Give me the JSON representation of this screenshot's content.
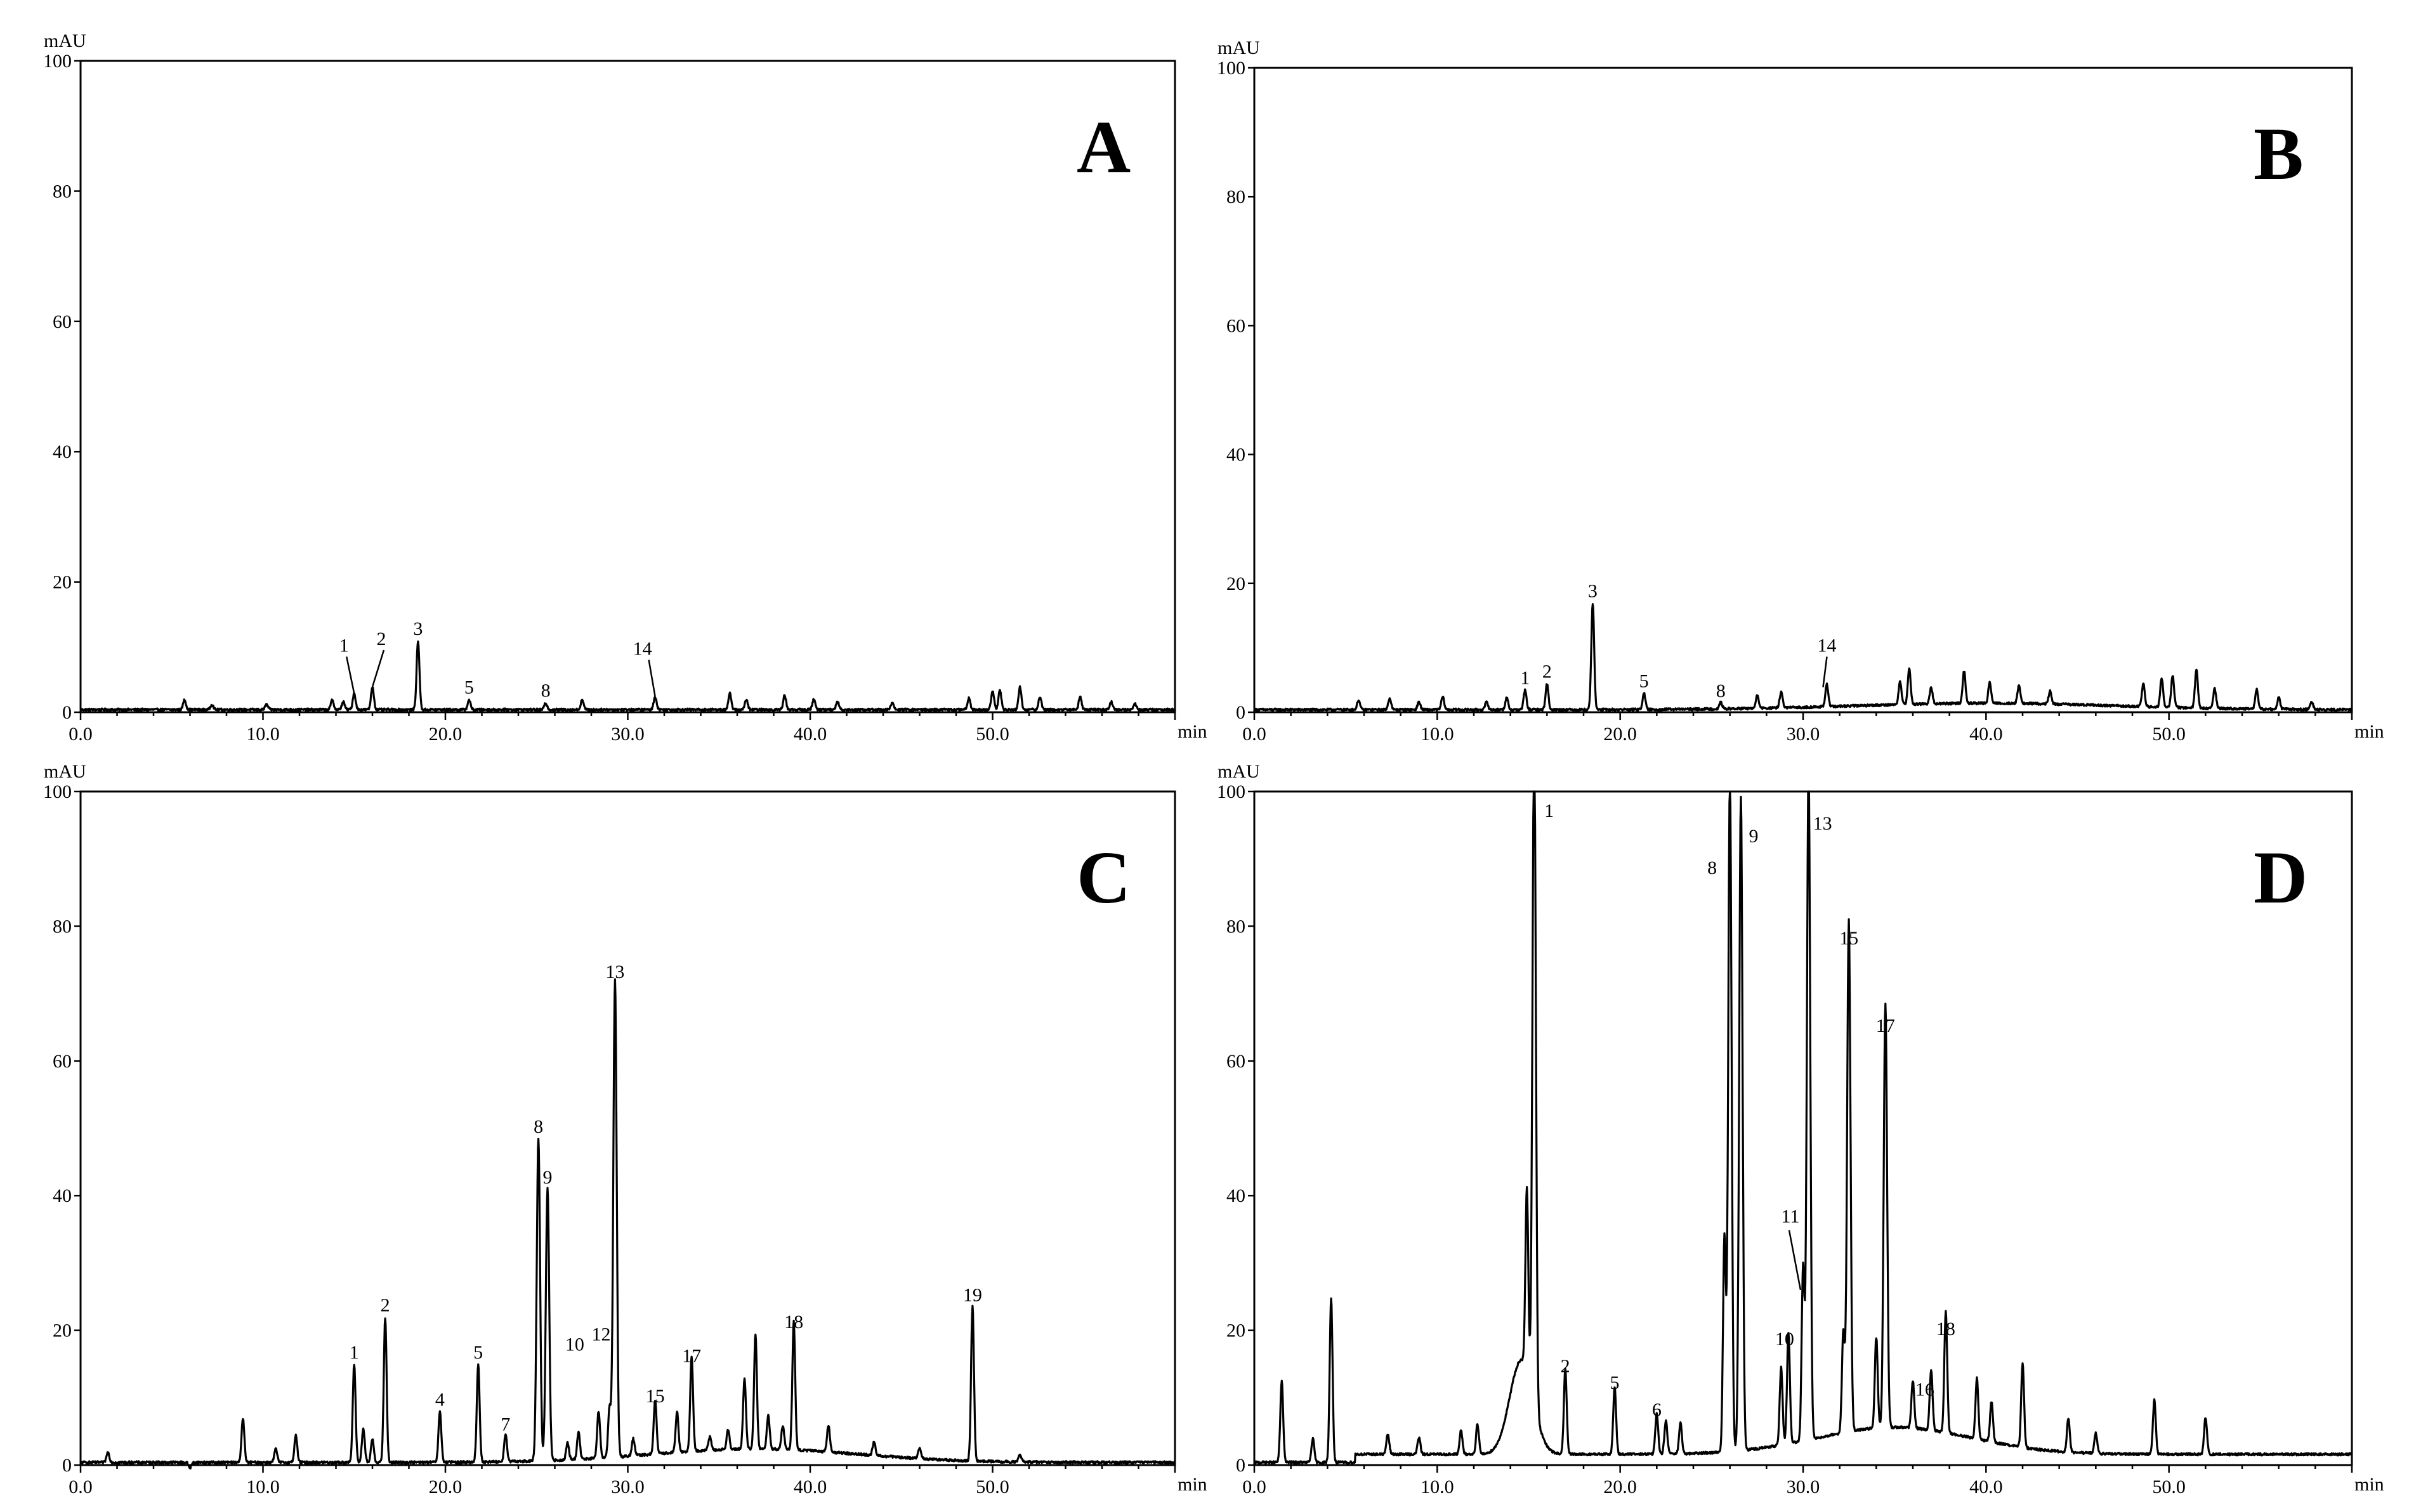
{
  "chart_data": [
    {
      "type": "line",
      "panel": "A",
      "ylabel": "mAU",
      "xlabel": "min",
      "xlim": [
        0,
        60
      ],
      "ylim": [
        0,
        100
      ],
      "x_ticks": [
        "0.0",
        "10.0",
        "20.0",
        "30.0",
        "40.0",
        "50.0"
      ],
      "y_ticks": [
        "0",
        "20",
        "40",
        "60",
        "80",
        "100"
      ],
      "peaks": [
        {
          "label": "1",
          "x": 15.0,
          "y": 2.5
        },
        {
          "label": "2",
          "x": 16.0,
          "y": 3.5
        },
        {
          "label": "3",
          "x": 18.5,
          "y": 10.5
        },
        {
          "label": "5",
          "x": 21.3,
          "y": 1.5
        },
        {
          "label": "8",
          "x": 25.5,
          "y": 1.0
        },
        {
          "label": "14",
          "x": 31.5,
          "y": 2.0
        }
      ],
      "other_peaks": [
        [
          5.7,
          1.5
        ],
        [
          7.2,
          0.8
        ],
        [
          10.2,
          0.8
        ],
        [
          13.8,
          1.5
        ],
        [
          14.4,
          1.2
        ],
        [
          27.5,
          1.5
        ],
        [
          35.6,
          2.5
        ],
        [
          36.5,
          1.5
        ],
        [
          38.6,
          2.2
        ],
        [
          40.2,
          1.6
        ],
        [
          41.5,
          1.2
        ],
        [
          44.5,
          1.0
        ],
        [
          48.7,
          1.8
        ],
        [
          50.0,
          2.8
        ],
        [
          50.4,
          3.0
        ],
        [
          51.5,
          3.5
        ],
        [
          52.6,
          2.0
        ],
        [
          54.8,
          2.0
        ],
        [
          56.5,
          1.2
        ],
        [
          57.8,
          1.0
        ]
      ]
    },
    {
      "type": "line",
      "panel": "B",
      "ylabel": "mAU",
      "xlabel": "min",
      "xlim": [
        0,
        60
      ],
      "ylim": [
        0,
        100
      ],
      "x_ticks": [
        "0.0",
        "10.0",
        "20.0",
        "30.0",
        "40.0",
        "50.0"
      ],
      "y_ticks": [
        "0",
        "20",
        "40",
        "60",
        "80",
        "100"
      ],
      "peaks": [
        {
          "label": "1",
          "x": 14.8,
          "y": 3.0
        },
        {
          "label": "2",
          "x": 16.0,
          "y": 4.0
        },
        {
          "label": "3",
          "x": 18.5,
          "y": 16.5
        },
        {
          "label": "5",
          "x": 21.3,
          "y": 2.5
        },
        {
          "label": "8",
          "x": 25.5,
          "y": 1.0
        },
        {
          "label": "14",
          "x": 31.3,
          "y": 3.5
        }
      ],
      "other_peaks": [
        [
          5.7,
          1.5
        ],
        [
          7.4,
          1.8
        ],
        [
          9.0,
          1.2
        ],
        [
          10.3,
          2.0
        ],
        [
          12.7,
          1.2
        ],
        [
          13.8,
          1.8
        ],
        [
          27.5,
          2.0
        ],
        [
          28.8,
          2.5
        ],
        [
          35.3,
          3.5
        ],
        [
          35.8,
          5.5
        ],
        [
          37.0,
          2.5
        ],
        [
          38.8,
          5.0
        ],
        [
          40.2,
          3.2
        ],
        [
          41.8,
          2.8
        ],
        [
          43.5,
          2.0
        ],
        [
          48.6,
          3.5
        ],
        [
          49.6,
          4.5
        ],
        [
          50.2,
          5.0
        ],
        [
          51.5,
          6.0
        ],
        [
          52.5,
          3.0
        ],
        [
          54.8,
          3.0
        ],
        [
          56.0,
          1.8
        ],
        [
          57.8,
          1.2
        ]
      ]
    },
    {
      "type": "line",
      "panel": "C",
      "ylabel": "mAU",
      "xlabel": "min",
      "xlim": [
        0,
        60
      ],
      "ylim": [
        0,
        100
      ],
      "x_ticks": [
        "0.0",
        "10.0",
        "20.0",
        "30.0",
        "40.0",
        "50.0"
      ],
      "y_ticks": [
        "0",
        "20",
        "40",
        "60",
        "80",
        "100"
      ],
      "peaks": [
        {
          "label": "1",
          "x": 15.0,
          "y": 14.5
        },
        {
          "label": "2",
          "x": 16.7,
          "y": 21.5
        },
        {
          "label": "4",
          "x": 19.7,
          "y": 7.5
        },
        {
          "label": "5",
          "x": 21.8,
          "y": 14.5
        },
        {
          "label": "7",
          "x": 23.3,
          "y": 4.0
        },
        {
          "label": "8",
          "x": 25.1,
          "y": 48.0
        },
        {
          "label": "9",
          "x": 25.6,
          "y": 40.5
        },
        {
          "label": "10",
          "x": 27.3,
          "y": 4.0
        },
        {
          "label": "12",
          "x": 28.4,
          "y": 7.0
        },
        {
          "label": "13",
          "x": 29.3,
          "y": 71.0
        },
        {
          "label": "15",
          "x": 31.5,
          "y": 8.0
        },
        {
          "label": "17",
          "x": 33.5,
          "y": 14.0
        },
        {
          "label": "18",
          "x": 39.1,
          "y": 19.0
        },
        {
          "label": "19",
          "x": 48.9,
          "y": 23.0
        }
      ],
      "other_peaks": [
        [
          1.5,
          1.5
        ],
        [
          6.0,
          -0.8
        ],
        [
          8.9,
          6.5
        ],
        [
          10.7,
          2.0
        ],
        [
          11.8,
          4.0
        ],
        [
          15.5,
          5.0
        ],
        [
          16.0,
          3.5
        ],
        [
          26.7,
          2.5
        ],
        [
          29.0,
          7.5
        ],
        [
          30.3,
          2.5
        ],
        [
          32.7,
          6.0
        ],
        [
          34.5,
          2.0
        ],
        [
          35.5,
          3.0
        ],
        [
          36.4,
          10.5
        ],
        [
          37.0,
          17.0
        ],
        [
          37.7,
          5.0
        ],
        [
          38.5,
          3.5
        ],
        [
          41.0,
          4.0
        ],
        [
          43.5,
          2.0
        ],
        [
          46.0,
          1.5
        ],
        [
          51.5,
          1.0
        ]
      ]
    },
    {
      "type": "line",
      "panel": "D",
      "ylabel": "mAU",
      "xlabel": "min",
      "xlim": [
        0,
        60
      ],
      "ylim": [
        0,
        100
      ],
      "x_ticks": [
        "0.0",
        "10.0",
        "20.0",
        "30.0",
        "40.0",
        "50.0"
      ],
      "y_ticks": [
        "0",
        "20",
        "40",
        "60",
        "80",
        "100"
      ],
      "peaks": [
        {
          "label": "1",
          "x": 15.3,
          "y": 100
        },
        {
          "label": "2",
          "x": 17.0,
          "y": 12.5
        },
        {
          "label": "5",
          "x": 19.7,
          "y": 10.0
        },
        {
          "label": "6",
          "x": 22.0,
          "y": 6.0
        },
        {
          "label": "8",
          "x": 26.0,
          "y": 100
        },
        {
          "label": "9",
          "x": 26.6,
          "y": 97.0
        },
        {
          "label": "10",
          "x": 29.2,
          "y": 16.5
        },
        {
          "label": "11",
          "x": 30.0,
          "y": 26.0
        },
        {
          "label": "13",
          "x": 30.3,
          "y": 100
        },
        {
          "label": "15",
          "x": 32.5,
          "y": 76.0
        },
        {
          "label": "16",
          "x": 37.0,
          "y": 9.0
        },
        {
          "label": "17",
          "x": 34.5,
          "y": 63.0
        },
        {
          "label": "18",
          "x": 37.8,
          "y": 18.0
        }
      ],
      "other_peaks": [
        [
          1.5,
          12.0
        ],
        [
          3.2,
          3.5
        ],
        [
          4.2,
          24.5
        ],
        [
          7.3,
          3.0
        ],
        [
          9.0,
          2.5
        ],
        [
          11.3,
          3.5
        ],
        [
          12.2,
          4.5
        ],
        [
          14.9,
          27.0
        ],
        [
          22.5,
          5.0
        ],
        [
          23.3,
          4.5
        ],
        [
          25.7,
          32.0
        ],
        [
          28.8,
          11.5
        ],
        [
          32.2,
          15.0
        ],
        [
          34.0,
          13.5
        ],
        [
          36.0,
          7.0
        ],
        [
          39.5,
          9.0
        ],
        [
          40.3,
          6.0
        ],
        [
          42.0,
          12.5
        ],
        [
          44.5,
          5.0
        ],
        [
          46.0,
          3.0
        ],
        [
          49.2,
          8.0
        ],
        [
          52.0,
          5.5
        ]
      ]
    }
  ]
}
